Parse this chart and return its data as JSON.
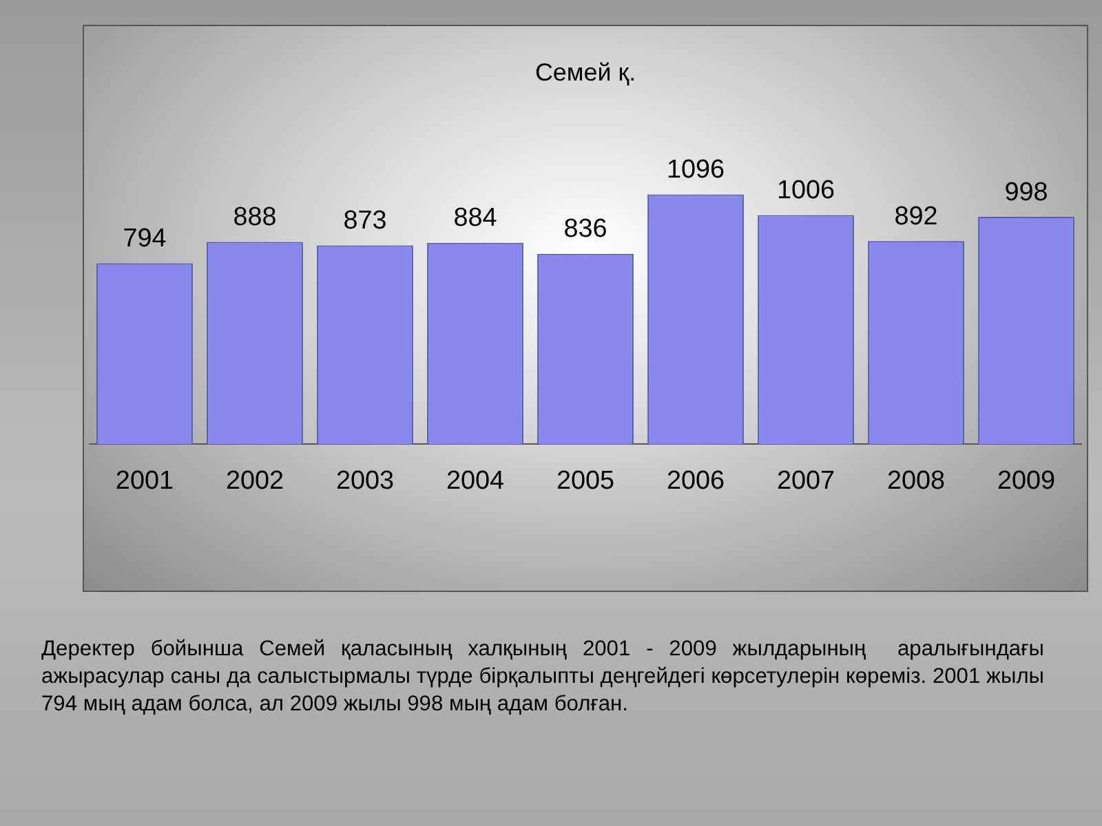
{
  "chart_data": {
    "type": "bar",
    "title": "Семей қ.",
    "categories": [
      "2001",
      "2002",
      "2003",
      "2004",
      "2005",
      "2006",
      "2007",
      "2008",
      "2009"
    ],
    "values": [
      794,
      888,
      873,
      884,
      836,
      1096,
      1006,
      892,
      998
    ],
    "color": "#8888ee",
    "data_labels": true,
    "tick_labels": "x",
    "annotations": [
      "Деректер бойынша Семей қаласының халқының 2001 - 2009 жылдарының  аралығындағы ажырасулар саны да салыстырмалы түрде бірқалыпты деңгейдегі көрсетулерін көреміз. 2001 жылы 794 мың адам болса, ал 2009 жылы 998 мың адам болған."
    ]
  }
}
